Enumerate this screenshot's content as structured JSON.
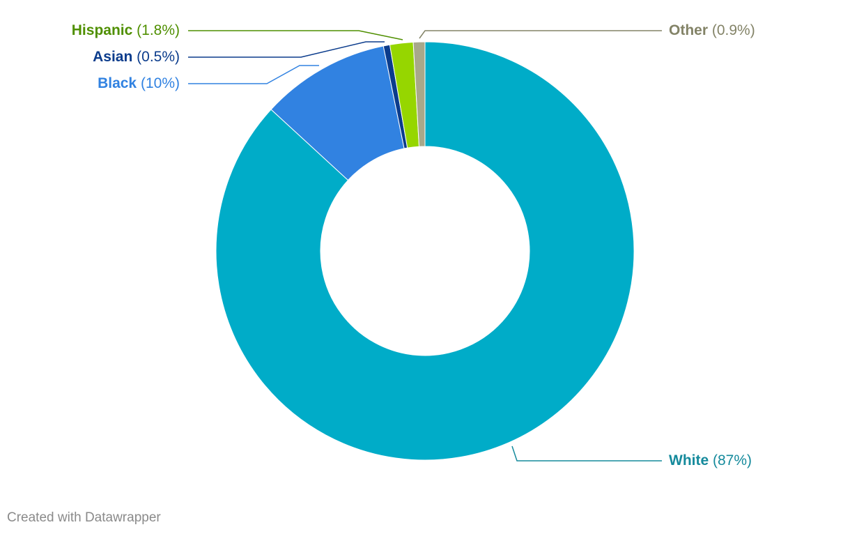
{
  "chart_data": {
    "type": "pie",
    "categories": [
      "White",
      "Black",
      "Asian",
      "Hispanic",
      "Other"
    ],
    "values": [
      87,
      10,
      0.5,
      1.8,
      0.9
    ],
    "value_labels": [
      "(87%)",
      "(10%)",
      "(0.5%)",
      "(1.8%)",
      "(0.9%)"
    ],
    "colors": [
      "#00acc8",
      "#3182e1",
      "#0b3c8c",
      "#96d600",
      "#a8a88a"
    ],
    "label_colors": [
      "#158a9c",
      "#3182e1",
      "#0b3c8c",
      "#4f8f00",
      "#838367"
    ],
    "credit": "Created with Datawrapper"
  }
}
